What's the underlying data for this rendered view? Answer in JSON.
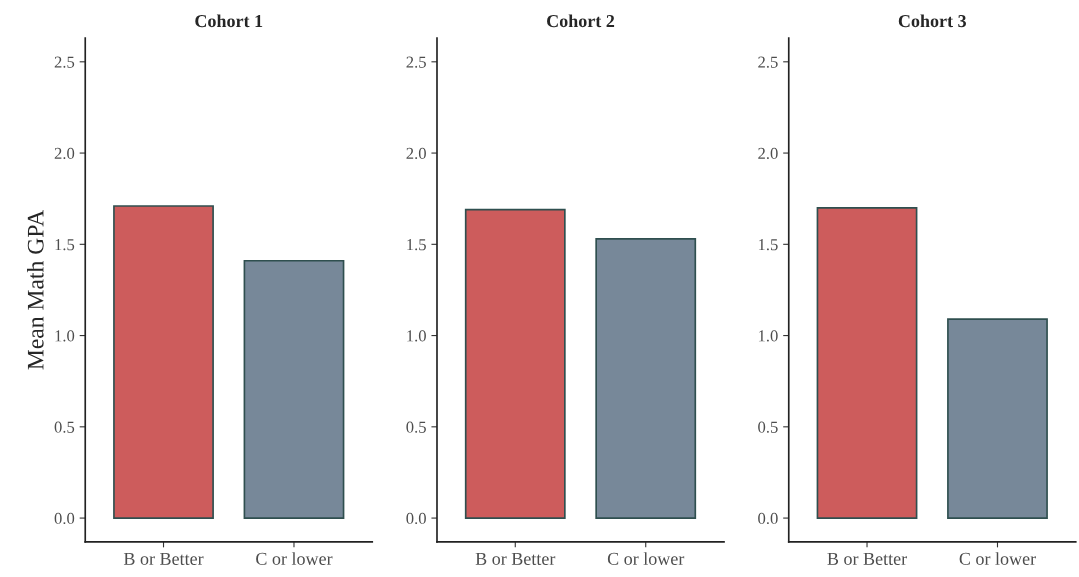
{
  "chart_data": [
    {
      "type": "bar",
      "title": "Cohort 1",
      "ylabel": "Mean Math GPA",
      "categories": [
        "B or Better",
        "C or lower"
      ],
      "values": [
        1.71,
        1.41
      ],
      "colors": [
        "#cd5c5c",
        "#778899"
      ],
      "ylim": [
        -0.13,
        2.63
      ],
      "yticks": [
        {
          "value": 0,
          "label": "0.0"
        },
        0.5,
        {
          "value": 1,
          "label": "1.0"
        },
        1.5,
        {
          "value": 2,
          "label": "2.0"
        },
        2.5
      ],
      "grid": false
    },
    {
      "type": "bar",
      "title": "Cohort 2",
      "categories": [
        "B or Better",
        "C or lower"
      ],
      "values": [
        1.69,
        1.53
      ],
      "colors": [
        "#cd5c5c",
        "#778899"
      ],
      "ylim": [
        -0.13,
        2.63
      ],
      "yticks": [
        {
          "value": 0,
          "label": "0.0"
        },
        0.5,
        {
          "value": 1,
          "label": "1.0"
        },
        1.5,
        {
          "value": 2,
          "label": "2.0"
        },
        2.5
      ],
      "grid": false
    },
    {
      "type": "bar",
      "title": "Cohort 3",
      "categories": [
        "B or Better",
        "C or lower"
      ],
      "values": [
        1.7,
        1.09
      ],
      "colors": [
        "#cd5c5c",
        "#778899"
      ],
      "ylim": [
        -0.13,
        2.63
      ],
      "yticks": [
        {
          "value": 0,
          "label": "0.0"
        },
        0.5,
        {
          "value": 1,
          "label": "1.0"
        },
        1.5,
        {
          "value": 2,
          "label": "2.0"
        },
        2.5
      ],
      "grid": false
    }
  ]
}
